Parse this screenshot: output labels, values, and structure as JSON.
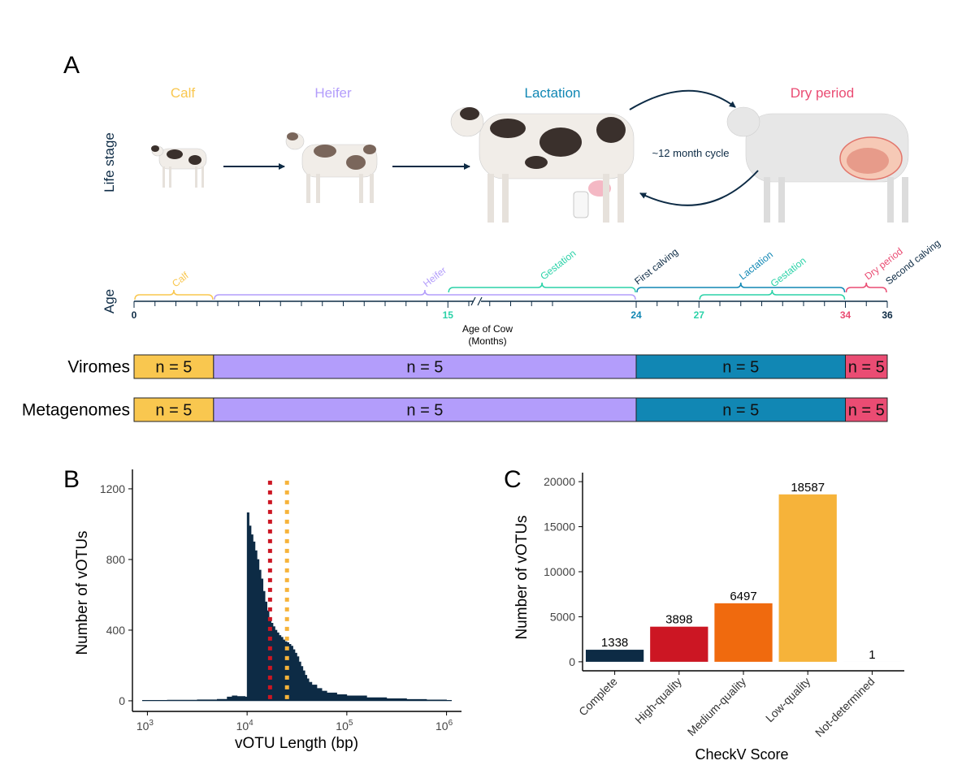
{
  "colors": {
    "calf": "#F9C74F",
    "heifer": "#B39DFB",
    "lactation": "#1187B4",
    "dry": "#EA4C73",
    "gestation": "#2BD2A8",
    "navy": "#0D2B45",
    "high": "#CC1623",
    "medium": "#F06A0E",
    "low": "#F6B33A"
  },
  "panel_a": {
    "label": "A",
    "y_label_life": "Life stage",
    "y_label_age": "Age",
    "stages": {
      "calf": "Calf",
      "heifer": "Heifer",
      "lactation": "Lactation",
      "dry": "Dry period"
    },
    "cycle_text": "~12 month cycle",
    "timeline": {
      "axis_title_line1": "Age of Cow",
      "axis_title_line2": "(Months)",
      "ticks": [
        {
          "value": 0,
          "label": "0",
          "color_key": "navy"
        },
        {
          "value": 15,
          "label": "15",
          "color_key": "gestation"
        },
        {
          "value": 24,
          "label": "24",
          "color_key": "lactation"
        },
        {
          "value": 27,
          "label": "27",
          "color_key": "gestation"
        },
        {
          "value": 34,
          "label": "34",
          "color_key": "dry"
        },
        {
          "value": 36,
          "label": "36",
          "color_key": "navy"
        }
      ],
      "brackets": [
        {
          "name": "Calf",
          "start": 0,
          "end": 3.8,
          "row": 0,
          "color_key": "calf"
        },
        {
          "name": "Heifer",
          "start": 3.8,
          "end": 24,
          "row": 0,
          "color_key": "heifer"
        },
        {
          "name": "Gestation",
          "start": 15,
          "end": 24,
          "row": 1,
          "color_key": "gestation"
        },
        {
          "name": "Lactation",
          "start": 24,
          "end": 34,
          "row": 1,
          "color_key": "lactation"
        },
        {
          "name": "Gestation",
          "start": 27,
          "end": 34,
          "row": 0,
          "color_key": "gestation"
        },
        {
          "name": "Dry period",
          "start": 34,
          "end": 36,
          "row": 1,
          "color_key": "dry"
        }
      ],
      "events": [
        {
          "label": "First calving",
          "at": 24
        },
        {
          "label": "Second calving",
          "at": 36
        }
      ]
    },
    "sample_rows": [
      {
        "label": "Viromes",
        "segments": [
          {
            "text": "n = 5",
            "start": 0,
            "end": 3.8,
            "color_key": "calf"
          },
          {
            "text": "n = 5",
            "start": 3.8,
            "end": 24,
            "color_key": "heifer"
          },
          {
            "text": "n = 5",
            "start": 24,
            "end": 34,
            "color_key": "lactation"
          },
          {
            "text": "n = 5",
            "start": 34,
            "end": 36,
            "color_key": "dry"
          }
        ]
      },
      {
        "label": "Metagenomes",
        "segments": [
          {
            "text": "n = 5",
            "start": 0,
            "end": 3.8,
            "color_key": "calf"
          },
          {
            "text": "n = 5",
            "start": 3.8,
            "end": 24,
            "color_key": "heifer"
          },
          {
            "text": "n = 5",
            "start": 24,
            "end": 34,
            "color_key": "lactation"
          },
          {
            "text": "n = 5",
            "start": 34,
            "end": 36,
            "color_key": "dry"
          }
        ]
      }
    ]
  },
  "chart_data": [
    {
      "panel": "B",
      "type": "histogram",
      "xlabel": "vOTU Length (bp)",
      "ylabel": "Number of vOTUs",
      "x_scale": "log10",
      "xlim": [
        2.85,
        6.15
      ],
      "ylim": [
        -60,
        1310
      ],
      "y_ticks": [
        0,
        400,
        800,
        1200
      ],
      "x_ticks": [
        {
          "exp": 3,
          "base": "10",
          "sup": "3"
        },
        {
          "exp": 4,
          "base": "10",
          "sup": "4"
        },
        {
          "exp": 5,
          "base": "10",
          "sup": "5"
        },
        {
          "exp": 6,
          "base": "10",
          "sup": "6"
        }
      ],
      "profile": [
        [
          2.95,
          3
        ],
        [
          3.2,
          4
        ],
        [
          3.5,
          6
        ],
        [
          3.7,
          9
        ],
        [
          3.8,
          22
        ],
        [
          3.85,
          28
        ],
        [
          3.9,
          25
        ],
        [
          3.98,
          22
        ],
        [
          4.0,
          1065
        ],
        [
          4.02,
          990
        ],
        [
          4.04,
          940
        ],
        [
          4.06,
          900
        ],
        [
          4.08,
          850
        ],
        [
          4.1,
          800
        ],
        [
          4.12,
          740
        ],
        [
          4.14,
          690
        ],
        [
          4.16,
          620
        ],
        [
          4.18,
          560
        ],
        [
          4.2,
          510
        ],
        [
          4.22,
          470
        ],
        [
          4.24,
          440
        ],
        [
          4.26,
          420
        ],
        [
          4.28,
          400
        ],
        [
          4.3,
          385
        ],
        [
          4.32,
          370
        ],
        [
          4.34,
          360
        ],
        [
          4.36,
          345
        ],
        [
          4.38,
          335
        ],
        [
          4.4,
          330
        ],
        [
          4.42,
          320
        ],
        [
          4.44,
          310
        ],
        [
          4.46,
          290
        ],
        [
          4.48,
          270
        ],
        [
          4.5,
          250
        ],
        [
          4.52,
          220
        ],
        [
          4.54,
          195
        ],
        [
          4.56,
          170
        ],
        [
          4.58,
          145
        ],
        [
          4.6,
          125
        ],
        [
          4.62,
          105
        ],
        [
          4.65,
          90
        ],
        [
          4.7,
          70
        ],
        [
          4.75,
          55
        ],
        [
          4.8,
          45
        ],
        [
          4.9,
          35
        ],
        [
          5.0,
          28
        ],
        [
          5.2,
          18
        ],
        [
          5.4,
          12
        ],
        [
          5.6,
          8
        ],
        [
          5.8,
          5
        ],
        [
          6.0,
          3
        ],
        [
          6.05,
          2
        ]
      ],
      "vlines": [
        {
          "x_exp": 4.23,
          "color_key": "high"
        },
        {
          "x_exp": 4.4,
          "color_key": "low"
        }
      ]
    },
    {
      "panel": "C",
      "type": "bar",
      "title": "",
      "xlabel": "CheckV Score",
      "ylabel": "Number of vOTUs",
      "ylim": [
        -1000,
        21000
      ],
      "y_ticks": [
        0,
        5000,
        10000,
        15000,
        20000
      ],
      "categories": [
        "Complete",
        "High-quality",
        "Medium-quality",
        "Low-quality",
        "Not-determined"
      ],
      "values": [
        1338,
        3898,
        6497,
        18587,
        1
      ],
      "labels": [
        "1338",
        "3898",
        "6497",
        "18587",
        "1"
      ],
      "bar_color_keys": [
        "navy",
        "high",
        "medium",
        "low",
        "navy"
      ]
    }
  ],
  "panel_b": {
    "label": "B"
  },
  "panel_c": {
    "label": "C"
  }
}
